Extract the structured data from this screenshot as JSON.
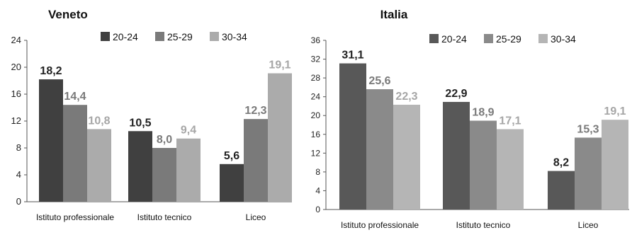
{
  "chart_data": [
    {
      "type": "bar",
      "title": "Veneto",
      "categories": [
        "Istituto professionale",
        "Istituto tecnico",
        "Liceo"
      ],
      "series": [
        {
          "name": "20-24",
          "values": [
            18.2,
            10.5,
            5.6
          ],
          "labels": [
            "18,2",
            "10,5",
            "5,6"
          ],
          "color": "#404040",
          "label_color": "#222222"
        },
        {
          "name": "25-29",
          "values": [
            14.4,
            8.0,
            12.3
          ],
          "labels": [
            "14,4",
            "8,0",
            "12,3"
          ],
          "color": "#7a7a7a",
          "label_color": "#7a7a7a"
        },
        {
          "name": "30-34",
          "values": [
            10.8,
            9.4,
            19.1
          ],
          "labels": [
            "10,8",
            "9,4",
            "19,1"
          ],
          "color": "#ababab",
          "label_color": "#a6a6a6"
        }
      ],
      "ylim": [
        0,
        24
      ],
      "yticks": [
        0,
        4,
        8,
        12,
        16,
        20,
        24
      ],
      "xlabel": "",
      "ylabel": "",
      "legend": "top-right",
      "grid": false
    },
    {
      "type": "bar",
      "title": "Italia",
      "categories": [
        "Istituto professionale",
        "Istituto tecnico",
        "Liceo"
      ],
      "series": [
        {
          "name": "20-24",
          "values": [
            31.1,
            22.9,
            8.2
          ],
          "labels": [
            "31,1",
            "22,9",
            "8,2"
          ],
          "color": "#585858",
          "label_color": "#222222"
        },
        {
          "name": "25-29",
          "values": [
            25.6,
            18.9,
            15.3
          ],
          "labels": [
            "25,6",
            "18,9",
            "15,3"
          ],
          "color": "#8a8a8a",
          "label_color": "#7a7a7a"
        },
        {
          "name": "30-34",
          "values": [
            22.3,
            17.1,
            19.1
          ],
          "labels": [
            "22,3",
            "17,1",
            "19,1"
          ],
          "color": "#b5b5b5",
          "label_color": "#a6a6a6"
        }
      ],
      "ylim": [
        0,
        36
      ],
      "yticks": [
        0,
        4,
        8,
        12,
        16,
        20,
        24,
        28,
        32,
        36
      ],
      "xlabel": "",
      "ylabel": "",
      "legend": "top-right",
      "grid": false
    }
  ]
}
